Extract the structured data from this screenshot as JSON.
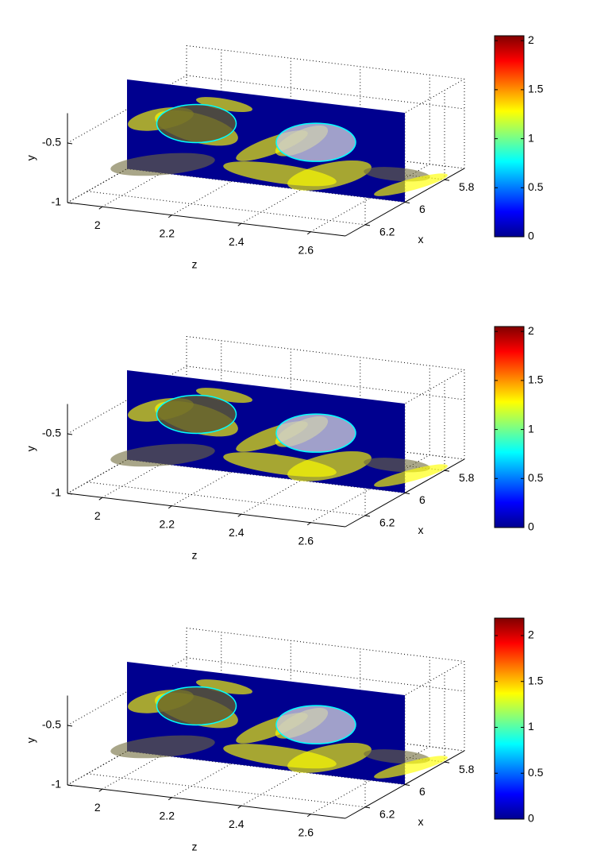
{
  "chart_data": [
    {
      "type": "volume-slice",
      "xlabel": "x",
      "ylabel": "y",
      "zlabel": "z",
      "xlim": [
        5.7,
        6.3
      ],
      "ylim": [
        -1,
        -0.25
      ],
      "zlim": [
        1.9,
        2.7
      ],
      "xticks": [
        5.8,
        6,
        6.2
      ],
      "yticks": [
        -1,
        -0.5
      ],
      "zticks": [
        2,
        2.2,
        2.4,
        2.6
      ],
      "slice_x": 6,
      "colorbar": {
        "colormap": "jet",
        "clim": [
          0,
          2.05
        ],
        "ticks": [
          0,
          0.5,
          1,
          1.5,
          2
        ]
      }
    },
    {
      "type": "volume-slice",
      "xlabel": "x",
      "ylabel": "y",
      "zlabel": "z",
      "xlim": [
        5.7,
        6.3
      ],
      "ylim": [
        -1,
        -0.25
      ],
      "zlim": [
        1.9,
        2.7
      ],
      "xticks": [
        5.8,
        6,
        6.2
      ],
      "yticks": [
        -1,
        -0.5
      ],
      "zticks": [
        2,
        2.2,
        2.4,
        2.6
      ],
      "slice_x": 6,
      "colorbar": {
        "colormap": "jet",
        "clim": [
          0,
          2.05
        ],
        "ticks": [
          0,
          0.5,
          1,
          1.5,
          2
        ]
      }
    },
    {
      "type": "volume-slice",
      "xlabel": "x",
      "ylabel": "y",
      "zlabel": "z",
      "xlim": [
        5.7,
        6.3
      ],
      "ylim": [
        -1,
        -0.25
      ],
      "zlim": [
        1.9,
        2.7
      ],
      "xticks": [
        5.8,
        6,
        6.2
      ],
      "yticks": [
        -1,
        -0.5
      ],
      "zticks": [
        2,
        2.2,
        2.4,
        2.6
      ],
      "slice_x": 6,
      "colorbar": {
        "colormap": "jet",
        "clim": [
          0,
          2.19
        ],
        "ticks": [
          0,
          0.5,
          1,
          1.5,
          2
        ]
      }
    }
  ]
}
